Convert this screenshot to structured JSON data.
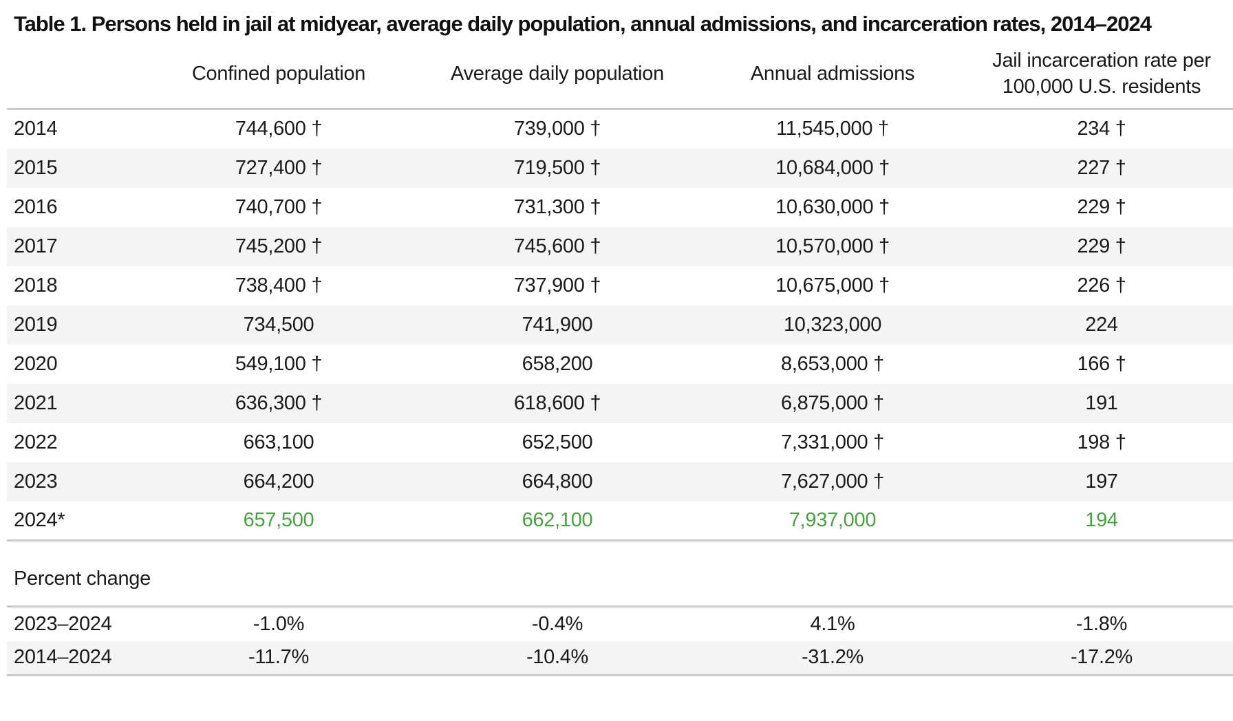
{
  "chart_data": {
    "type": "table",
    "title": "Table 1. Persons held in jail at midyear, average daily population, annual admissions, and incarceration rates, 2014–2024",
    "columns": [
      "Confined population",
      "Average daily population",
      "Annual admissions",
      "Jail incarceration rate per 100,000 U.S. residents"
    ],
    "rows": [
      {
        "year": "2014",
        "values": [
          "744,600 †",
          "739,000 †",
          "11,545,000 †",
          "234 †"
        ],
        "highlight": false
      },
      {
        "year": "2015",
        "values": [
          "727,400 †",
          "719,500 †",
          "10,684,000 †",
          "227 †"
        ],
        "highlight": false
      },
      {
        "year": "2016",
        "values": [
          "740,700 †",
          "731,300 †",
          "10,630,000 †",
          "229 †"
        ],
        "highlight": false
      },
      {
        "year": "2017",
        "values": [
          "745,200 †",
          "745,600 †",
          "10,570,000 †",
          "229 †"
        ],
        "highlight": false
      },
      {
        "year": "2018",
        "values": [
          "738,400 †",
          "737,900 †",
          "10,675,000 †",
          "226 †"
        ],
        "highlight": false
      },
      {
        "year": "2019",
        "values": [
          "734,500",
          "741,900",
          "10,323,000",
          "224"
        ],
        "highlight": false
      },
      {
        "year": "2020",
        "values": [
          "549,100 †",
          "658,200",
          "8,653,000 †",
          "166 †"
        ],
        "highlight": false
      },
      {
        "year": "2021",
        "values": [
          "636,300 †",
          "618,600 †",
          "6,875,000 †",
          "191"
        ],
        "highlight": false
      },
      {
        "year": "2022",
        "values": [
          "663,100",
          "652,500",
          "7,331,000 †",
          "198 †"
        ],
        "highlight": false
      },
      {
        "year": "2023",
        "values": [
          "664,200",
          "664,800",
          "7,627,000 †",
          "197"
        ],
        "highlight": false
      },
      {
        "year": "2024*",
        "values": [
          "657,500",
          "662,100",
          "7,937,000",
          "194"
        ],
        "highlight": true
      }
    ],
    "percent_change": {
      "label": "Percent change",
      "rows": [
        {
          "period": "2023–2024",
          "values": [
            "-1.0%",
            "-0.4%",
            "4.1%",
            "-1.8%"
          ]
        },
        {
          "period": "2014–2024",
          "values": [
            "-11.7%",
            "-10.4%",
            "-31.2%",
            "-17.2%"
          ]
        }
      ]
    },
    "colors": {
      "highlight_green": "#44a53c",
      "row_shade": "#f4f4f4",
      "rule_gray": "#c9c9c9",
      "text": "#1b1b1b"
    },
    "layout_hints": {
      "year_column_align": "left",
      "value_columns_align": "center",
      "shading": "alternate rows starting with second data row"
    }
  }
}
